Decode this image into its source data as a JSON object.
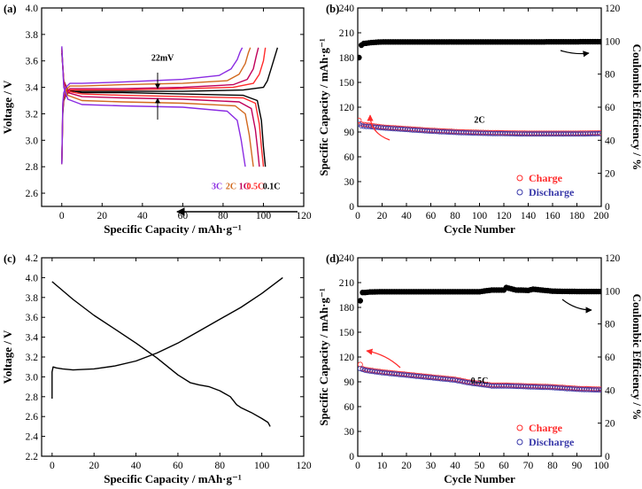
{
  "chart_data": [
    {
      "panel": "(a)",
      "type": "line",
      "xlabel": "Specific Capacity / mAh·g⁻¹",
      "ylabel": "Voltage / V",
      "xlim": [
        -10,
        120
      ],
      "ylim": [
        2.5,
        4.0
      ],
      "xticks": [
        0,
        20,
        40,
        60,
        80,
        100,
        120
      ],
      "yticks": [
        2.6,
        2.8,
        3.0,
        3.2,
        3.4,
        3.6,
        3.8,
        4.0
      ],
      "ytick_decimals": 1,
      "grid": false,
      "annotations": [
        {
          "text": "22mV",
          "x": 50,
          "y": 3.6
        },
        {
          "text": "3C",
          "x": 77,
          "y": 2.63,
          "color": "#8a2be2"
        },
        {
          "text": "2C",
          "x": 84,
          "y": 2.63,
          "color": "#d2691e"
        },
        {
          "text": "1C",
          "x": 90.5,
          "y": 2.63,
          "color": "#c0005a"
        },
        {
          "text": "0.5C",
          "x": 96,
          "y": 2.63,
          "color": "#ff2a2a"
        },
        {
          "text": "0.1C",
          "x": 104,
          "y": 2.63,
          "color": "#000000"
        }
      ],
      "series": [
        {
          "name": "0.1C charge",
          "color": "#000000",
          "x": [
            0,
            0.5,
            1,
            2,
            4,
            10,
            30,
            60,
            90,
            100,
            102,
            104,
            106,
            107
          ],
          "y": [
            2.82,
            3.2,
            3.3,
            3.34,
            3.37,
            3.37,
            3.37,
            3.37,
            3.38,
            3.4,
            3.45,
            3.55,
            3.65,
            3.7
          ]
        },
        {
          "name": "0.1C discharge",
          "color": "#000000",
          "x": [
            0,
            1,
            3,
            10,
            30,
            60,
            90,
            97,
            99,
            100,
            101
          ],
          "y": [
            3.66,
            3.45,
            3.38,
            3.36,
            3.36,
            3.35,
            3.34,
            3.3,
            3.15,
            2.95,
            2.8
          ]
        },
        {
          "name": "0.5C charge",
          "color": "#ff2a2a",
          "x": [
            0,
            0.5,
            1,
            2,
            4,
            10,
            30,
            60,
            85,
            95,
            98,
            100,
            101
          ],
          "y": [
            2.82,
            3.22,
            3.31,
            3.35,
            3.38,
            3.38,
            3.38,
            3.39,
            3.4,
            3.43,
            3.5,
            3.6,
            3.7
          ]
        },
        {
          "name": "0.5C discharge",
          "color": "#ff2a2a",
          "x": [
            0,
            1,
            3,
            10,
            30,
            60,
            90,
            96,
            98,
            99,
            100
          ],
          "y": [
            3.68,
            3.45,
            3.37,
            3.35,
            3.34,
            3.33,
            3.32,
            3.28,
            3.12,
            2.95,
            2.8
          ]
        },
        {
          "name": "1C charge",
          "color": "#c0005a",
          "x": [
            0,
            0.5,
            1,
            2,
            4,
            10,
            30,
            60,
            85,
            92,
            95,
            96.5,
            97.5
          ],
          "y": [
            2.82,
            3.24,
            3.32,
            3.36,
            3.39,
            3.39,
            3.39,
            3.4,
            3.42,
            3.46,
            3.54,
            3.64,
            3.7
          ]
        },
        {
          "name": "1C discharge",
          "color": "#c0005a",
          "x": [
            0,
            1,
            3,
            10,
            30,
            60,
            88,
            94,
            96,
            97,
            98
          ],
          "y": [
            3.69,
            3.44,
            3.36,
            3.33,
            3.32,
            3.31,
            3.29,
            3.24,
            3.08,
            2.95,
            2.8
          ]
        },
        {
          "name": "2C charge",
          "color": "#d2691e",
          "x": [
            0,
            0.5,
            1,
            2,
            4,
            10,
            30,
            60,
            82,
            88,
            91,
            92.5,
            93.5
          ],
          "y": [
            2.82,
            3.26,
            3.34,
            3.38,
            3.41,
            3.41,
            3.42,
            3.43,
            3.45,
            3.5,
            3.58,
            3.66,
            3.7
          ]
        },
        {
          "name": "2C discharge",
          "color": "#d2691e",
          "x": [
            0,
            1,
            3,
            10,
            30,
            60,
            86,
            91,
            93,
            94,
            95
          ],
          "y": [
            3.7,
            3.42,
            3.34,
            3.3,
            3.29,
            3.28,
            3.26,
            3.2,
            3.04,
            2.92,
            2.8
          ]
        },
        {
          "name": "3C charge",
          "color": "#8a2be2",
          "x": [
            0,
            0.5,
            1,
            2,
            4,
            10,
            30,
            60,
            78,
            84,
            87,
            88.5,
            89.5
          ],
          "y": [
            2.82,
            3.28,
            3.36,
            3.4,
            3.43,
            3.43,
            3.44,
            3.46,
            3.49,
            3.54,
            3.61,
            3.67,
            3.7
          ]
        },
        {
          "name": "3C discharge",
          "color": "#8a2be2",
          "x": [
            0,
            1,
            3,
            10,
            30,
            60,
            82,
            87,
            89,
            90,
            91
          ],
          "y": [
            3.71,
            3.4,
            3.31,
            3.27,
            3.26,
            3.25,
            3.22,
            3.15,
            3.0,
            2.9,
            2.8
          ]
        }
      ]
    },
    {
      "panel": "(b)",
      "type": "scatter",
      "xlabel": "Cycle Number",
      "ylabel": "Specific Capacity / mAh·g⁻¹",
      "ylabel_right": "Coulombic Efficiency / %",
      "xlim": [
        0,
        200
      ],
      "ylim": [
        0,
        240
      ],
      "ylim_right": [
        0,
        120
      ],
      "xticks": [
        0,
        20,
        40,
        60,
        80,
        100,
        120,
        140,
        160,
        180,
        200
      ],
      "yticks": [
        0,
        30,
        60,
        90,
        120,
        150,
        180,
        210,
        240
      ],
      "yticks_right": [
        0,
        20,
        40,
        60,
        80,
        100,
        120
      ],
      "annotations": [
        {
          "text": "2C",
          "x": 100,
          "y": 101
        }
      ],
      "legend": [
        "Charge",
        "Discharge"
      ],
      "series": [
        {
          "name": "Charge",
          "axis": "left",
          "color": "#ff2a2a",
          "marker": "open-circle",
          "x": [
            1,
            2,
            3,
            5,
            10,
            20,
            40,
            60,
            80,
            100,
            120,
            140,
            160,
            180,
            200
          ],
          "y": [
            104,
            100,
            99.5,
            99,
            98,
            96,
            94,
            92,
            90.5,
            89.5,
            89,
            88.5,
            88.5,
            88.5,
            89
          ]
        },
        {
          "name": "Discharge",
          "axis": "left",
          "color": "#3a3aaa",
          "marker": "open-circle",
          "x": [
            1,
            2,
            3,
            5,
            10,
            20,
            40,
            60,
            80,
            100,
            120,
            140,
            160,
            180,
            200
          ],
          "y": [
            100,
            98,
            97.5,
            97,
            96.5,
            95,
            93,
            91,
            89.5,
            88.5,
            88,
            87.5,
            87.5,
            87.5,
            88
          ]
        },
        {
          "name": "Coulombic Efficiency",
          "axis": "right",
          "color": "#000000",
          "marker": "filled-circle",
          "x": [
            1,
            2,
            3,
            5,
            10,
            20,
            50,
            100,
            150,
            200
          ],
          "y": [
            90,
            96,
            97.5,
            98.5,
            99,
            99.5,
            99.5,
            99.5,
            99.5,
            99.6
          ]
        }
      ]
    },
    {
      "panel": "(c)",
      "type": "line",
      "xlabel": "Specific Capacity / mAh·g⁻¹",
      "ylabel": "Voltage / V",
      "xlim": [
        -5,
        120
      ],
      "ylim": [
        2.2,
        4.2
      ],
      "xticks": [
        0,
        20,
        40,
        60,
        80,
        100,
        120
      ],
      "yticks": [
        2.2,
        2.4,
        2.6,
        2.8,
        3.0,
        3.2,
        3.4,
        3.6,
        3.8,
        4.0,
        4.2
      ],
      "ytick_decimals": 1,
      "series": [
        {
          "name": "Charge",
          "color": "#000000",
          "x": [
            0,
            0,
            0.5,
            2,
            5,
            10,
            20,
            30,
            40,
            50,
            60,
            70,
            80,
            90,
            100,
            110
          ],
          "y": [
            2.78,
            3.05,
            3.1,
            3.09,
            3.08,
            3.07,
            3.08,
            3.11,
            3.16,
            3.24,
            3.34,
            3.46,
            3.58,
            3.7,
            3.84,
            4.0
          ]
        },
        {
          "name": "Discharge",
          "color": "#000000",
          "x": [
            0,
            10,
            20,
            30,
            40,
            50,
            60,
            66,
            70,
            75,
            80,
            85,
            88,
            90,
            95,
            100,
            103,
            104
          ],
          "y": [
            3.96,
            3.78,
            3.62,
            3.48,
            3.34,
            3.19,
            3.02,
            2.94,
            2.92,
            2.9,
            2.86,
            2.8,
            2.72,
            2.69,
            2.64,
            2.58,
            2.54,
            2.5
          ]
        }
      ]
    },
    {
      "panel": "(d)",
      "type": "scatter",
      "xlabel": "Cycle Number",
      "ylabel": "Specific Capacity / mAh·g⁻¹",
      "ylabel_right": "Coulombic Efficiency / %",
      "xlim": [
        0,
        100
      ],
      "ylim": [
        0,
        240
      ],
      "ylim_right": [
        0,
        120
      ],
      "xticks": [
        0,
        10,
        20,
        30,
        40,
        50,
        60,
        70,
        80,
        90,
        100
      ],
      "yticks": [
        0,
        30,
        60,
        90,
        120,
        150,
        180,
        210,
        240
      ],
      "yticks_right": [
        0,
        20,
        40,
        60,
        80,
        100,
        120
      ],
      "annotations": [
        {
          "text": "0.5C",
          "x": 50,
          "y": 88
        }
      ],
      "legend": [
        "Charge",
        "Discharge"
      ],
      "series": [
        {
          "name": "Charge",
          "axis": "left",
          "color": "#ff2a2a",
          "marker": "open-circle",
          "x": [
            1,
            2,
            3,
            5,
            10,
            20,
            30,
            40,
            45,
            50,
            55,
            60,
            70,
            80,
            90,
            100
          ],
          "y": [
            111,
            106,
            105,
            104,
            102,
            99,
            96,
            93,
            90,
            88,
            86,
            86,
            85,
            84,
            82,
            81
          ]
        },
        {
          "name": "Discharge",
          "axis": "left",
          "color": "#3a3aaa",
          "marker": "open-circle",
          "x": [
            1,
            2,
            3,
            5,
            10,
            20,
            30,
            40,
            45,
            50,
            55,
            60,
            70,
            80,
            90,
            100
          ],
          "y": [
            106,
            105,
            104,
            103,
            101,
            98,
            95,
            92,
            89,
            87,
            85,
            85,
            84,
            83,
            81,
            80
          ]
        },
        {
          "name": "Coulombic Efficiency",
          "axis": "right",
          "color": "#000000",
          "marker": "filled-circle",
          "x": [
            1,
            2,
            3,
            5,
            10,
            20,
            30,
            40,
            50,
            55,
            60,
            61,
            65,
            70,
            72,
            80,
            90,
            100
          ],
          "y": [
            94,
            99,
            99,
            99.3,
            99.5,
            99.5,
            99.5,
            99.5,
            99.5,
            100.5,
            100.5,
            102,
            100.5,
            100.3,
            101,
            99.8,
            99.6,
            99.6
          ]
        }
      ]
    }
  ]
}
